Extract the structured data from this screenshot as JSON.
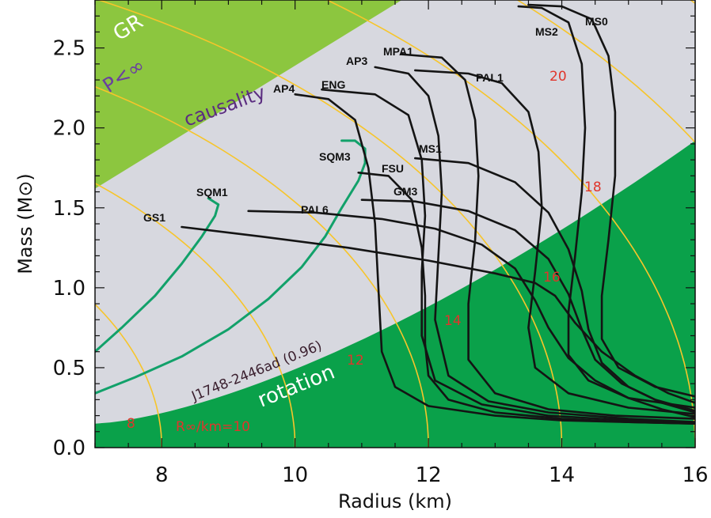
{
  "colors": {
    "background_region": "#d7d8df",
    "gr_region": "#0b5fa6",
    "p_inf_region": "#0cb3ee",
    "causality_region": "#8cc63f",
    "rotation_region": "#0aa14a",
    "eos_curve": "#141414",
    "strange_curve": "#12a16a",
    "radius_contour": "#f7c52a",
    "contour_label": "#e0352b"
  },
  "chart_data": {
    "type": "line",
    "xlabel": "Radius (km)",
    "ylabel": "Mass (M⊙)",
    "xlim": [
      7,
      16
    ],
    "ylim": [
      0,
      2.8
    ],
    "xticks": [
      "8",
      "10",
      "12",
      "14",
      "16"
    ],
    "yticks": [
      "0.0",
      "0.5",
      "1.0",
      "1.5",
      "2.0",
      "2.5"
    ],
    "grid": false,
    "region_labels": {
      "gr": "GR",
      "p_inf": "P<∞",
      "causality": "causality",
      "rotation": "rotation",
      "pulsar": "J1748-2446ad (0.96)"
    },
    "radius_contour_labels": [
      "8",
      "R∞/km=10",
      "12",
      "14",
      "16",
      "18",
      "20"
    ],
    "series": [
      {
        "name": "GR",
        "kind": "region"
      },
      {
        "name": "P<∞",
        "kind": "region"
      },
      {
        "name": "causality",
        "kind": "region"
      },
      {
        "name": "rotation",
        "kind": "region"
      },
      {
        "name": "SQM1",
        "kind": "strange",
        "x": [
          7.0,
          7.4,
          7.9,
          8.3,
          8.6,
          8.8,
          8.85,
          8.7
        ],
        "y": [
          0.6,
          0.75,
          0.95,
          1.15,
          1.32,
          1.45,
          1.52,
          1.56
        ]
      },
      {
        "name": "SQM3",
        "kind": "strange",
        "x": [
          7.0,
          7.6,
          8.3,
          9.0,
          9.6,
          10.1,
          10.45,
          10.7,
          10.95,
          11.05,
          11.05,
          10.9,
          10.7
        ],
        "y": [
          0.34,
          0.44,
          0.57,
          0.74,
          0.93,
          1.13,
          1.32,
          1.5,
          1.67,
          1.78,
          1.87,
          1.92,
          1.92
        ]
      },
      {
        "name": "GS1",
        "kind": "eos",
        "x": [
          8.3,
          9.5,
          10.8,
          12.0,
          13.0,
          13.6,
          13.9,
          14.2,
          14.6,
          15.1,
          15.6,
          16.0
        ],
        "y": [
          1.38,
          1.32,
          1.25,
          1.17,
          1.09,
          1.03,
          0.95,
          0.78,
          0.6,
          0.45,
          0.34,
          0.28
        ]
      },
      {
        "name": "PAL6",
        "kind": "eos",
        "x": [
          9.3,
          10.3,
          11.3,
          12.1,
          12.8,
          13.3,
          13.6,
          13.8,
          14.1,
          14.5,
          15.0,
          15.5,
          16.0
        ],
        "y": [
          1.48,
          1.47,
          1.43,
          1.37,
          1.27,
          1.12,
          0.92,
          0.75,
          0.56,
          0.42,
          0.31,
          0.24,
          0.19
        ]
      },
      {
        "name": "GM3",
        "kind": "eos",
        "x": [
          11.0,
          11.8,
          12.6,
          13.3,
          13.8,
          14.1,
          14.3,
          14.5,
          14.9,
          15.4,
          16.0
        ],
        "y": [
          1.55,
          1.54,
          1.48,
          1.36,
          1.18,
          0.96,
          0.74,
          0.55,
          0.4,
          0.3,
          0.23
        ]
      },
      {
        "name": "MS1",
        "kind": "eos",
        "x": [
          11.8,
          12.6,
          13.3,
          13.8,
          14.1,
          14.3,
          14.4,
          14.6,
          15.0,
          15.5,
          16.0
        ],
        "y": [
          1.81,
          1.78,
          1.66,
          1.47,
          1.24,
          0.98,
          0.74,
          0.53,
          0.38,
          0.28,
          0.22
        ]
      },
      {
        "name": "FSU",
        "kind": "eos",
        "x": [
          10.95,
          11.4,
          11.75,
          11.9,
          11.95,
          11.95,
          12.0,
          12.3,
          13.0,
          14.0,
          15.0,
          16.0
        ],
        "y": [
          1.72,
          1.7,
          1.55,
          1.25,
          0.95,
          0.65,
          0.45,
          0.3,
          0.22,
          0.18,
          0.16,
          0.15
        ]
      },
      {
        "name": "AP4",
        "kind": "eos",
        "x": [
          10.0,
          10.5,
          10.9,
          11.1,
          11.2,
          11.25,
          11.3,
          11.5,
          12.0,
          13.0,
          14.0,
          15.0,
          16.0
        ],
        "y": [
          2.21,
          2.18,
          2.05,
          1.75,
          1.4,
          1.0,
          0.6,
          0.38,
          0.26,
          0.2,
          0.17,
          0.16,
          0.15
        ]
      },
      {
        "name": "ENG",
        "kind": "eos",
        "x": [
          10.4,
          11.2,
          11.7,
          11.9,
          11.95,
          11.9,
          11.9,
          12.1,
          12.8,
          13.8,
          15.0,
          16.0
        ],
        "y": [
          2.24,
          2.21,
          2.08,
          1.8,
          1.45,
          1.1,
          0.7,
          0.42,
          0.27,
          0.2,
          0.17,
          0.16
        ]
      },
      {
        "name": "AP3",
        "kind": "eos",
        "x": [
          11.2,
          11.7,
          12.0,
          12.15,
          12.2,
          12.15,
          12.1,
          12.3,
          12.9,
          13.8,
          15.0,
          16.0
        ],
        "y": [
          2.38,
          2.34,
          2.2,
          1.95,
          1.6,
          1.2,
          0.8,
          0.45,
          0.29,
          0.22,
          0.18,
          0.16
        ]
      },
      {
        "name": "MPA1",
        "kind": "eos",
        "x": [
          11.6,
          12.2,
          12.55,
          12.7,
          12.75,
          12.7,
          12.6,
          12.6,
          13.0,
          13.8,
          14.8,
          16.0
        ],
        "y": [
          2.46,
          2.44,
          2.3,
          2.05,
          1.7,
          1.3,
          0.9,
          0.55,
          0.34,
          0.24,
          0.2,
          0.18
        ]
      },
      {
        "name": "PAL1",
        "kind": "eos",
        "x": [
          11.8,
          12.6,
          13.1,
          13.5,
          13.65,
          13.7,
          13.6,
          13.5,
          13.6,
          14.1,
          15.0,
          16.0
        ],
        "y": [
          2.36,
          2.34,
          2.28,
          2.1,
          1.85,
          1.5,
          1.1,
          0.75,
          0.5,
          0.34,
          0.25,
          0.21
        ]
      },
      {
        "name": "MS2",
        "kind": "eos",
        "x": [
          13.35,
          13.7,
          14.1,
          14.3,
          14.35,
          14.3,
          14.2,
          14.1,
          14.1,
          14.4,
          15.0,
          16.0
        ],
        "y": [
          2.76,
          2.75,
          2.66,
          2.4,
          2.0,
          1.6,
          1.2,
          0.85,
          0.58,
          0.42,
          0.31,
          0.25
        ]
      },
      {
        "name": "MS0",
        "kind": "eos",
        "x": [
          13.5,
          14.0,
          14.45,
          14.7,
          14.8,
          14.8,
          14.7,
          14.6,
          14.6,
          14.85,
          15.4,
          16.0
        ],
        "y": [
          2.77,
          2.76,
          2.68,
          2.45,
          2.1,
          1.7,
          1.3,
          0.95,
          0.68,
          0.5,
          0.38,
          0.32
        ]
      }
    ]
  }
}
